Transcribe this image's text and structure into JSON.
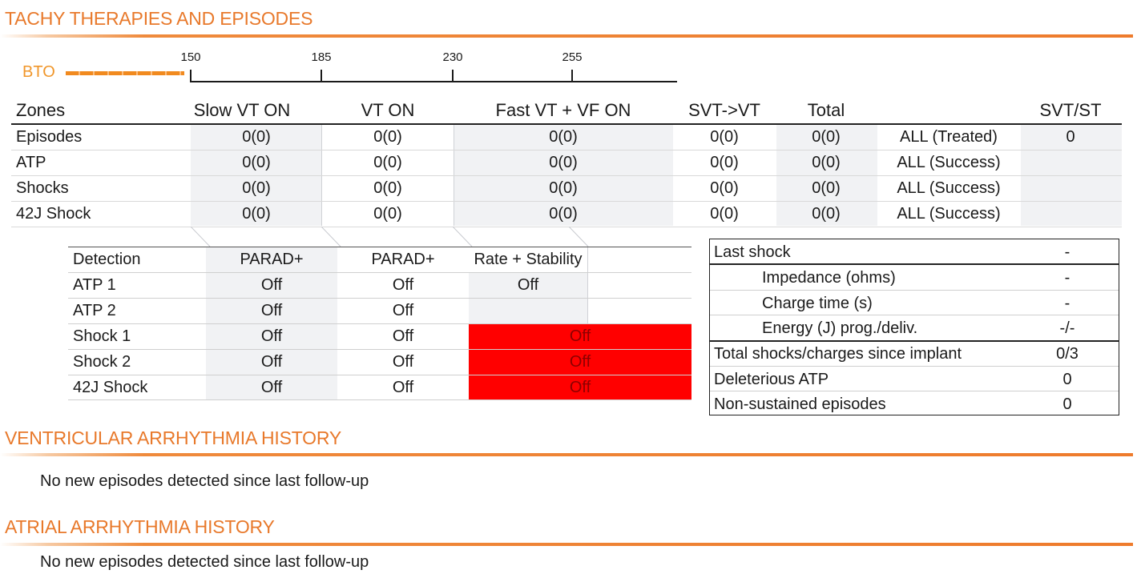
{
  "sections": {
    "tachy": "TACHY THERAPIES AND EPISODES",
    "ventricular": "VENTRICULAR ARRHYTHMIA HISTORY",
    "atrial": "ATRIAL ARRHYTHMIA HISTORY"
  },
  "scale": {
    "bto_label": "BTO",
    "ticks": [
      "150",
      "185",
      "230",
      "255"
    ]
  },
  "zones": {
    "headers": [
      "Zones",
      "Slow VT ON",
      "VT ON",
      "Fast VT + VF ON",
      "SVT->VT",
      "Total",
      "",
      "SVT/ST"
    ],
    "rows": [
      {
        "label": "Episodes",
        "slow": "0(0)",
        "vt": "0(0)",
        "fast": "0(0)",
        "svt": "0(0)",
        "total": "0(0)",
        "all": "ALL (Treated)",
        "svtst": "0"
      },
      {
        "label": "ATP",
        "slow": "0(0)",
        "vt": "0(0)",
        "fast": "0(0)",
        "svt": "0(0)",
        "total": "0(0)",
        "all": "ALL (Success)",
        "svtst": ""
      },
      {
        "label": "Shocks",
        "slow": "0(0)",
        "vt": "0(0)",
        "fast": "0(0)",
        "svt": "0(0)",
        "total": "0(0)",
        "all": "ALL (Success)",
        "svtst": ""
      },
      {
        "label": "42J Shock",
        "slow": "0(0)",
        "vt": "0(0)",
        "fast": "0(0)",
        "svt": "0(0)",
        "total": "0(0)",
        "all": "ALL (Success)",
        "svtst": ""
      }
    ]
  },
  "detection": {
    "headers": [
      "Detection",
      "PARAD+",
      "PARAD+",
      "Rate + Stability"
    ],
    "rows": [
      {
        "label": "ATP 1",
        "c1": "Off",
        "c2": "Off",
        "c3": "Off",
        "c3_alert": false
      },
      {
        "label": "ATP 2",
        "c1": "Off",
        "c2": "Off",
        "c3": "",
        "c3_alert": false
      },
      {
        "label": "Shock 1",
        "c1": "Off",
        "c2": "Off",
        "c3": "Off",
        "c3_alert": true
      },
      {
        "label": "Shock 2",
        "c1": "Off",
        "c2": "Off",
        "c3": "Off",
        "c3_alert": true
      },
      {
        "label": "42J Shock",
        "c1": "Off",
        "c2": "Off",
        "c3": "Off",
        "c3_alert": true
      }
    ],
    "alert_color": "#ff0000"
  },
  "last_shock": {
    "rows": [
      {
        "label": "Last shock",
        "value": "-",
        "indent": false
      },
      {
        "label": "Impedance (ohms)",
        "value": "-",
        "indent": true
      },
      {
        "label": "Charge time (s)",
        "value": "-",
        "indent": true
      },
      {
        "label": "Energy (J) prog./deliv.",
        "value": "-/-",
        "indent": true
      },
      {
        "label": "Total shocks/charges since implant",
        "value": "0/3",
        "indent": false
      },
      {
        "label": "Deleterious ATP",
        "value": "0",
        "indent": false
      },
      {
        "label": "Non-sustained episodes",
        "value": "0",
        "indent": false
      }
    ]
  },
  "ventricular_history": {
    "message": "No new episodes detected since last follow-up"
  },
  "atrial_history": {
    "message": "No new episodes detected since last follow-up"
  },
  "colors": {
    "accent": "#ee7b2c",
    "bto": "#f18a1f"
  }
}
